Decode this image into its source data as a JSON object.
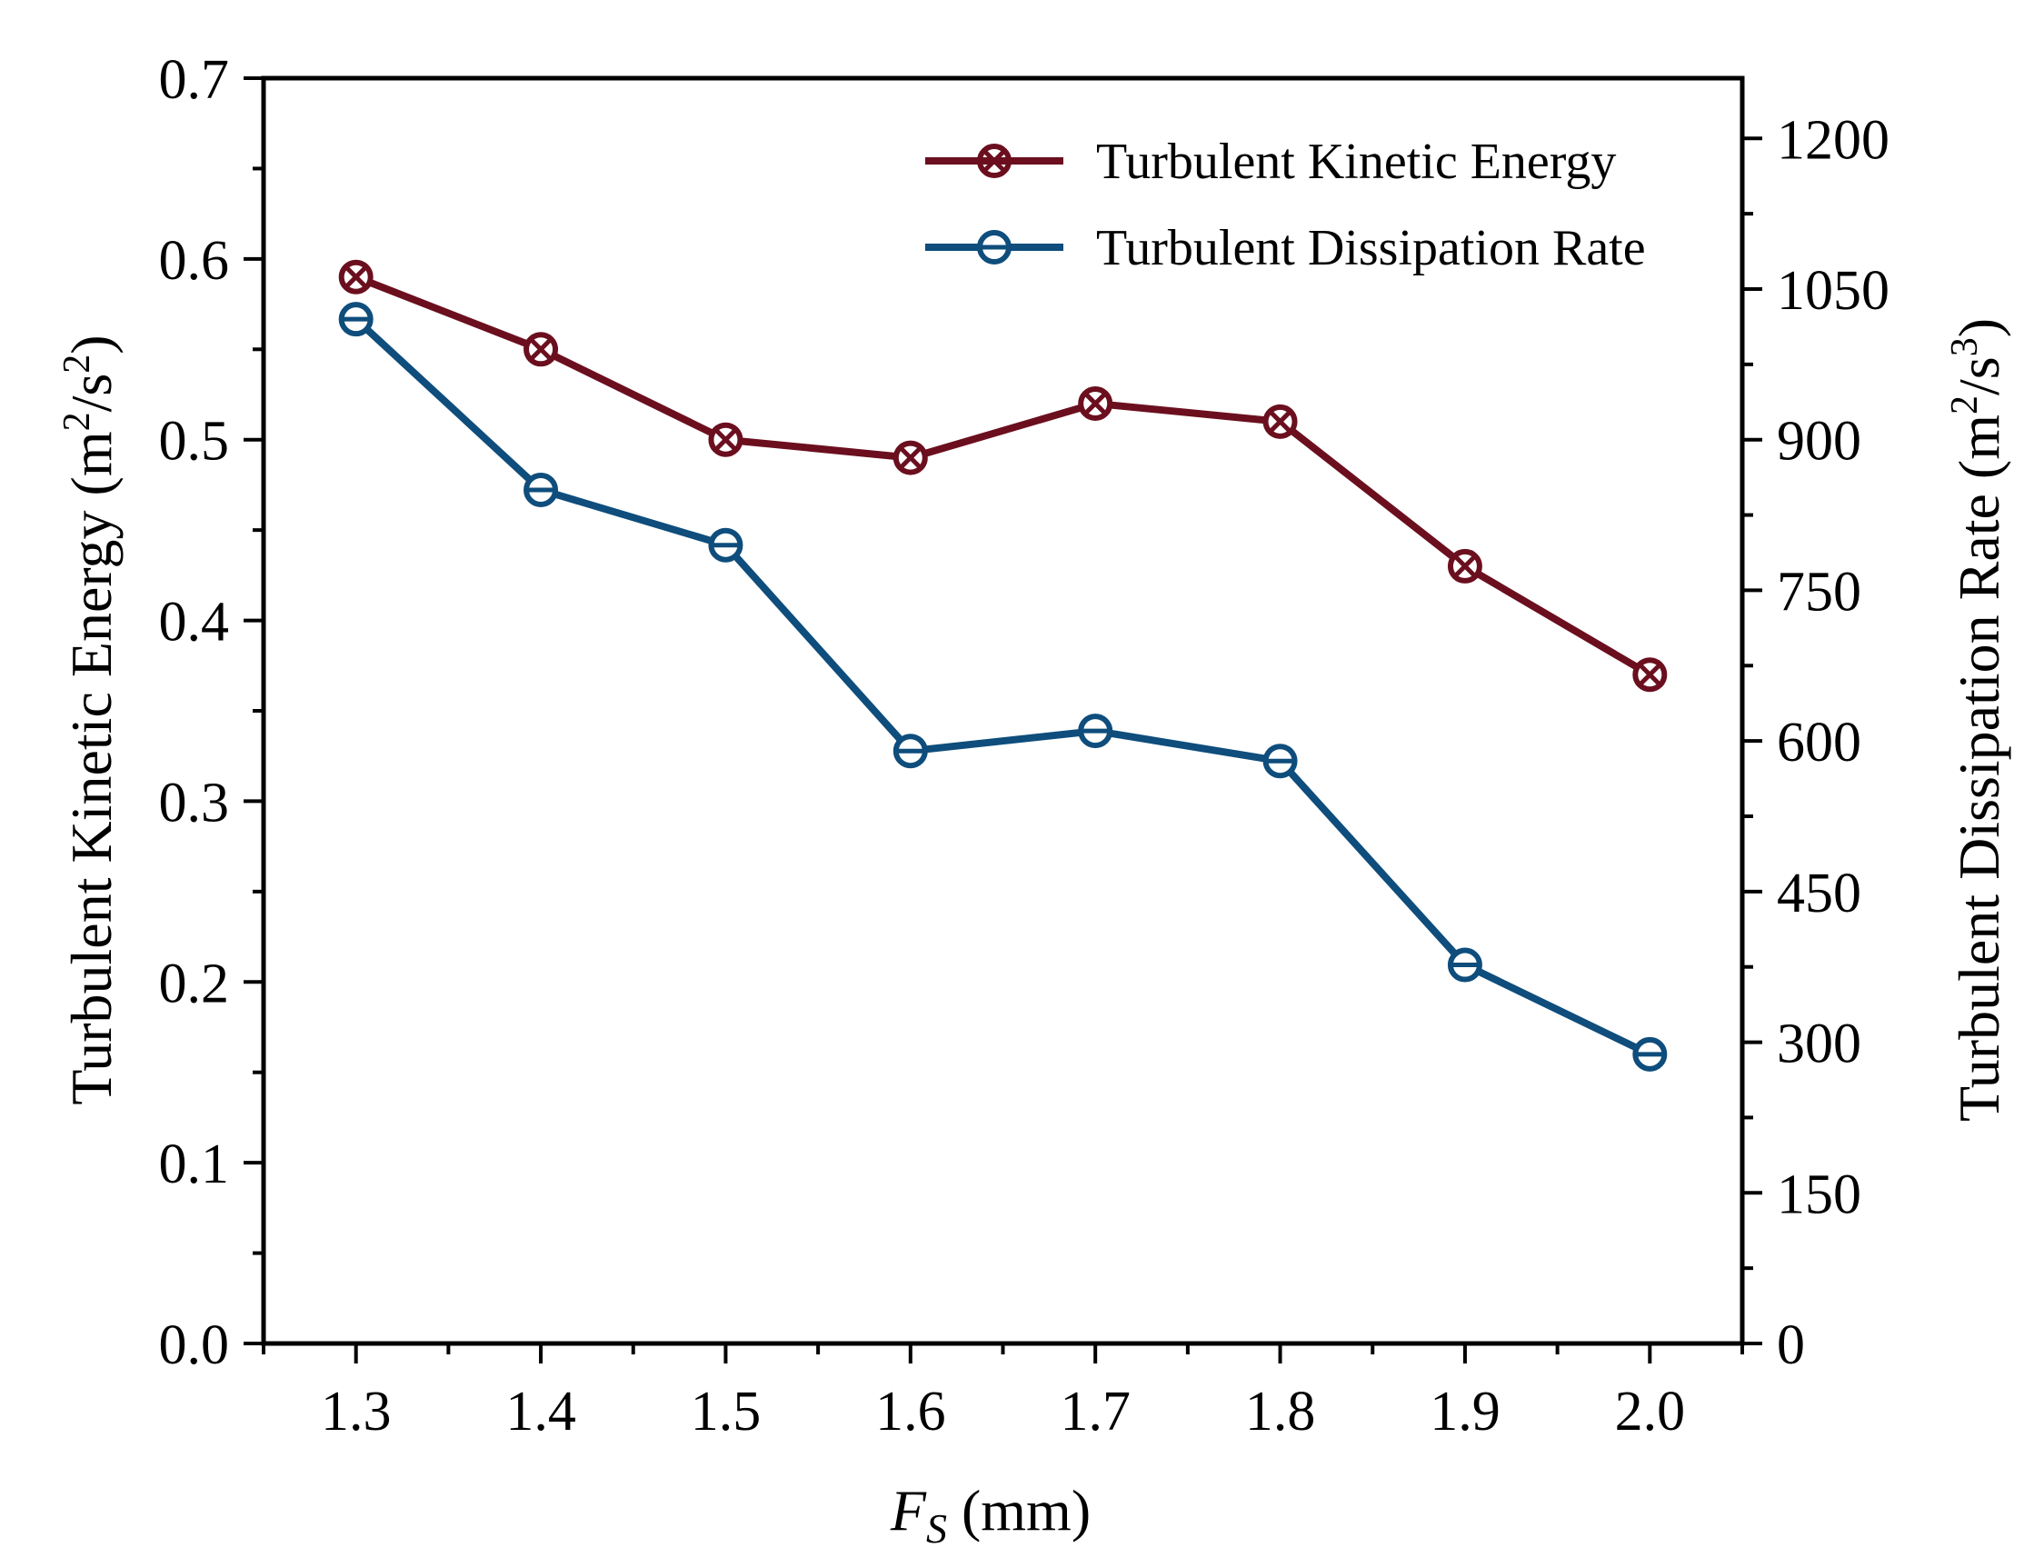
{
  "chart_data": {
    "type": "line",
    "x": [
      1.3,
      1.4,
      1.5,
      1.6,
      1.7,
      1.8,
      1.9,
      2.0
    ],
    "x_tick_labels": [
      "1.3",
      "1.4",
      "1.5",
      "1.6",
      "1.7",
      "1.8",
      "1.9",
      "2.0"
    ],
    "xlim": [
      1.25,
      2.05
    ],
    "xlabel_main": "F",
    "xlabel_sub": "S",
    "xlabel_unit": " (mm)",
    "left_axis": {
      "label": "Turbulent Kinetic Energy  (m",
      "label_sup1": "2",
      "label_mid": "/s",
      "label_sup2": "2",
      "label_end": ")",
      "ylim": [
        0,
        0.7
      ],
      "ticks": [
        0,
        0.1,
        0.2,
        0.3,
        0.4,
        0.5,
        0.6,
        0.7
      ],
      "tick_labels": [
        "0.0",
        "0.1",
        "0.2",
        "0.3",
        "0.4",
        "0.5",
        "0.6",
        "0.7"
      ]
    },
    "right_axis": {
      "label": "Turbulent Dissipation Rate (m",
      "label_sup1": "2",
      "label_mid": "/s",
      "label_sup2": "3",
      "label_end": ")",
      "ylim": [
        0,
        1260
      ],
      "ticks": [
        0,
        150,
        300,
        450,
        600,
        750,
        900,
        1050,
        1200
      ],
      "tick_labels": [
        "0",
        "150",
        "300",
        "450",
        "600",
        "750",
        "900",
        "1050",
        "1200"
      ]
    },
    "series": [
      {
        "name": "Turbulent Kinetic Energy",
        "axis": "left",
        "marker": "circle-x",
        "color": "#6b0f1f",
        "values": [
          0.59,
          0.55,
          0.5,
          0.49,
          0.52,
          0.51,
          0.43,
          0.37
        ]
      },
      {
        "name": "Turbulent Dissipation Rate",
        "axis": "right",
        "marker": "circle-minus",
        "color": "#0e4d7c",
        "values": [
          1020,
          850,
          795,
          590,
          610,
          580,
          377,
          288
        ]
      }
    ],
    "legend_position": "top-right"
  }
}
